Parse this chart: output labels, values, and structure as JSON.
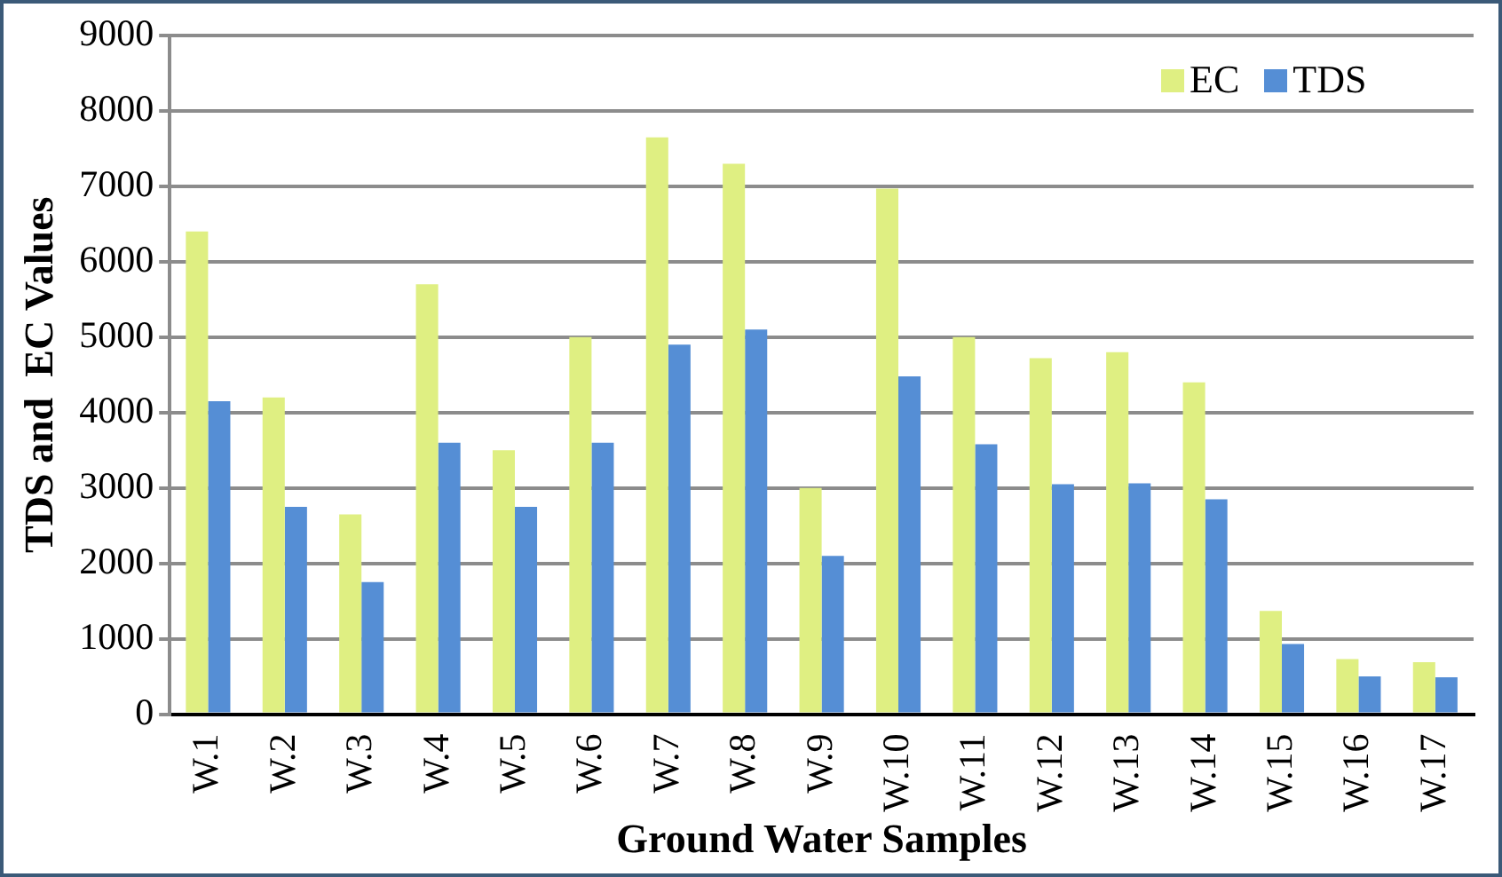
{
  "chart_data": {
    "type": "bar",
    "xlabel": "Ground Water Samples",
    "ylabel": "TDS and  EC Values",
    "categories": [
      "W.1",
      "W.2",
      "W.3",
      "W.4",
      "W.5",
      "W.6",
      "W.7",
      "W.8",
      "W.9",
      "W.10",
      "W.11",
      "W.12",
      "W.13",
      "W.14",
      "W.15",
      "W.16",
      "W.17"
    ],
    "series": [
      {
        "name": "EC",
        "color": "#dfef82",
        "values": [
          6400,
          4200,
          2650,
          5700,
          3500,
          5000,
          7650,
          7300,
          3000,
          6970,
          5000,
          4720,
          4800,
          4400,
          1370,
          730,
          690
        ]
      },
      {
        "name": "TDS",
        "color": "#558ed5",
        "values": [
          4150,
          2750,
          1750,
          3600,
          2750,
          3600,
          4900,
          5100,
          2100,
          4480,
          3580,
          3050,
          3060,
          2850,
          930,
          500,
          490
        ]
      }
    ],
    "ylim": [
      0,
      9000
    ],
    "yticks": [
      0,
      1000,
      2000,
      3000,
      4000,
      5000,
      6000,
      7000,
      8000,
      9000
    ],
    "grid": "y",
    "legend": "top right"
  }
}
